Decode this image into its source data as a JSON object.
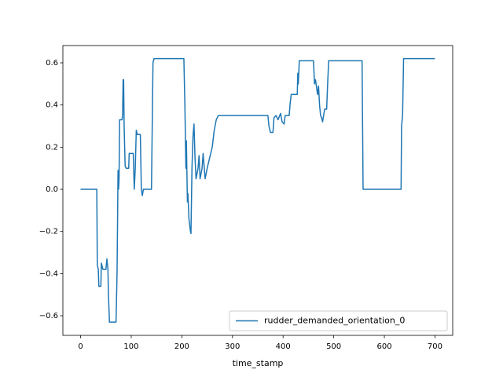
{
  "chart_data": {
    "type": "line",
    "xlabel": "time_stamp",
    "x": [
      0,
      32,
      33,
      35,
      36,
      40,
      41,
      44,
      50,
      52,
      54,
      55,
      57,
      70,
      72,
      74,
      75,
      76,
      77,
      82,
      83,
      84,
      85,
      86,
      88,
      90,
      95,
      96,
      104,
      106,
      108,
      110,
      112,
      118,
      120,
      122,
      124,
      140,
      141,
      143,
      145,
      204,
      206,
      208,
      209,
      210,
      211,
      212,
      214,
      217,
      218,
      220,
      222,
      224,
      226,
      228,
      232,
      234,
      236,
      240,
      242,
      246,
      250,
      255,
      260,
      264,
      268,
      272,
      370,
      372,
      375,
      380,
      382,
      386,
      390,
      395,
      398,
      402,
      404,
      412,
      414,
      416,
      428,
      429,
      430,
      432,
      460,
      462,
      464,
      468,
      470,
      472,
      474,
      476,
      478,
      482,
      486,
      488,
      490,
      556,
      558,
      633,
      634,
      636,
      638,
      700
    ],
    "series": [
      {
        "name": "rudder_demanded_orientation_0",
        "color": "#1f77b4",
        "values": [
          0,
          0,
          -0.36,
          -0.38,
          -0.46,
          -0.46,
          -0.35,
          -0.38,
          -0.38,
          -0.33,
          -0.38,
          -0.5,
          -0.63,
          -0.63,
          -0.4,
          0.09,
          0.0,
          0.05,
          0.33,
          0.33,
          0.36,
          0.52,
          0.52,
          0.3,
          0.11,
          0.1,
          0.1,
          0.17,
          0.17,
          0.0,
          0.1,
          0.28,
          0.26,
          0.26,
          0.0,
          -0.03,
          0.0,
          0.0,
          0.2,
          0.6,
          0.62,
          0.62,
          0.4,
          0.1,
          0.23,
          0.08,
          -0.06,
          -0.02,
          -0.14,
          -0.2,
          -0.21,
          0.1,
          0.25,
          0.31,
          0.15,
          0.05,
          0.1,
          0.16,
          0.05,
          0.1,
          0.17,
          0.05,
          0.1,
          0.15,
          0.2,
          0.28,
          0.33,
          0.35,
          0.35,
          0.3,
          0.27,
          0.27,
          0.34,
          0.35,
          0.33,
          0.36,
          0.32,
          0.31,
          0.35,
          0.35,
          0.41,
          0.45,
          0.45,
          0.55,
          0.5,
          0.61,
          0.61,
          0.5,
          0.52,
          0.45,
          0.49,
          0.4,
          0.35,
          0.34,
          0.32,
          0.38,
          0.38,
          0.5,
          0.61,
          0.61,
          0.0,
          0.0,
          0.3,
          0.35,
          0.62,
          0.62
        ]
      }
    ],
    "xlim": [
      -35,
      735
    ],
    "xticks": [
      0,
      100,
      200,
      300,
      400,
      500,
      600,
      700
    ],
    "ylim": [
      -0.693,
      0.682
    ],
    "yticks": [
      {
        "value": -0.6,
        "label": "−0.6"
      },
      {
        "value": -0.4,
        "label": "−0.4"
      },
      {
        "value": -0.2,
        "label": "−0.2"
      },
      {
        "value": 0,
        "label": "0.0"
      },
      0.2,
      0.4,
      0.6
    ],
    "legend": "lower right"
  }
}
